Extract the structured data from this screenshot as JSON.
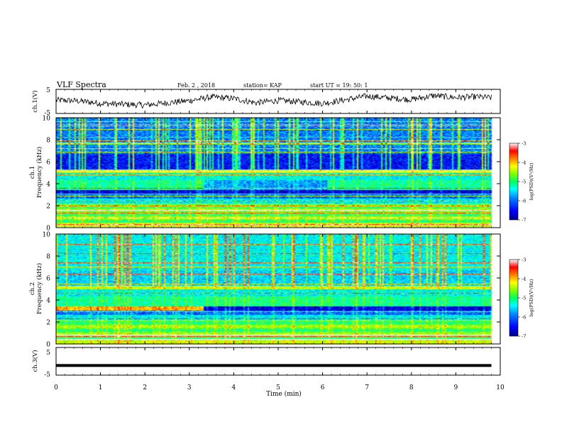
{
  "header": {
    "title": "VLF Spectra",
    "date": "Feb. 2 , 2018",
    "station": "station= KAP",
    "start": "start UT =  19: 50: 1"
  },
  "chart_data": {
    "type": "heatmap",
    "title": "VLF Spectra",
    "panels": [
      {
        "name": "ch1-waveform",
        "type": "line",
        "ylabel": "ch.1(V)",
        "ylim": [
          -5,
          5
        ],
        "yticks": [
          "5",
          "-5"
        ],
        "x": [
          0,
          0.5,
          1,
          1.5,
          2,
          2.5,
          3,
          3.5,
          4,
          4.5,
          5,
          5.5,
          6,
          6.5,
          7,
          7.5,
          8,
          8.5,
          9,
          9.5,
          9.8
        ],
        "values": [
          0.5,
          0.2,
          -0.8,
          -1.2,
          -1.5,
          -0.6,
          0.3,
          1.8,
          1.2,
          -0.6,
          0.4,
          -0.2,
          -0.8,
          0.6,
          2.2,
          1.4,
          0.8,
          2.4,
          1.6,
          1.9,
          1.5
        ]
      },
      {
        "name": "ch1-spectrogram",
        "type": "heatmap",
        "ylabel": "ch.1",
        "ylabel2": "Frequency (kHz)",
        "ylim": [
          0,
          10
        ],
        "yticks": [
          "0",
          "2",
          "4",
          "6",
          "8",
          "10"
        ],
        "colorbar": {
          "label": "log(PSD)(V²/Hz)",
          "range": [
            -7,
            -3
          ],
          "ticks": [
            "-3",
            "-4",
            "-5",
            "-6",
            "-7"
          ]
        }
      },
      {
        "name": "ch2-spectrogram",
        "type": "heatmap",
        "ylabel": "ch.2",
        "ylabel2": "Frequency (kHz)",
        "ylim": [
          0,
          10
        ],
        "yticks": [
          "0",
          "2",
          "4",
          "6",
          "8",
          "10"
        ],
        "colorbar": {
          "label": "log(PSD)(V²/Hz)",
          "range": [
            -7,
            -3
          ],
          "ticks": [
            "-3",
            "-4",
            "-5",
            "-6",
            "-7"
          ]
        }
      },
      {
        "name": "ch3-waveform",
        "type": "line",
        "ylabel": "ch.3(V)",
        "ylim": [
          -5,
          5
        ],
        "yticks": [
          "5",
          "-5"
        ],
        "x": [
          0,
          9.8
        ],
        "values": [
          -1.5,
          -1.5
        ]
      }
    ],
    "xlabel": "Time (min)",
    "xlim": [
      0,
      10
    ],
    "xticks": [
      "0",
      "1",
      "2",
      "3",
      "4",
      "5",
      "6",
      "7",
      "8",
      "9",
      "10"
    ],
    "data_end_min": 9.8,
    "colormap": [
      "#000080",
      "#0000ff",
      "#0080ff",
      "#00ffff",
      "#00ff80",
      "#80ff00",
      "#ffff00",
      "#ff8000",
      "#ff0000",
      "#ffffff"
    ]
  }
}
